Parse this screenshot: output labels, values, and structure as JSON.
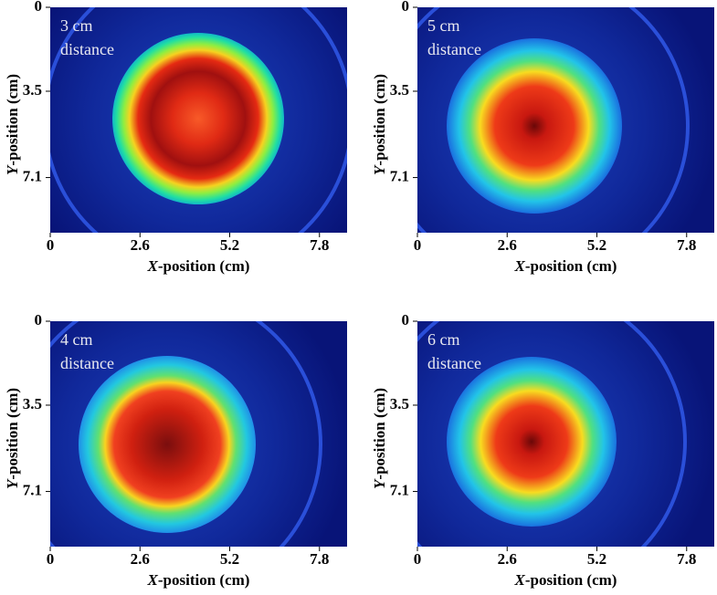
{
  "chart_data": [
    {
      "type": "heatmap",
      "annotation": [
        "3 cm",
        "distance"
      ],
      "xlabel": "X-position (cm)",
      "ylabel": "Y-position (cm)",
      "xlim": [
        0,
        8.6
      ],
      "xticks": [
        0,
        2.6,
        5.2,
        7.8
      ],
      "ylim": [
        9.4,
        0
      ],
      "yticks": [
        0,
        3.5,
        7.1
      ]
    },
    {
      "type": "heatmap",
      "annotation": [
        "5 cm",
        "distance"
      ],
      "xlabel": "X-position (cm)",
      "ylabel": "Y-position (cm)",
      "xlim": [
        0,
        8.6
      ],
      "xticks": [
        0,
        2.6,
        5.2,
        7.8
      ],
      "ylim": [
        9.4,
        0
      ],
      "yticks": [
        0,
        3.5,
        7.1
      ]
    },
    {
      "type": "heatmap",
      "annotation": [
        "4 cm",
        "distance"
      ],
      "xlabel": "X-position (cm)",
      "ylabel": "Y-position (cm)",
      "xlim": [
        0,
        8.6
      ],
      "xticks": [
        0,
        2.6,
        5.2,
        7.8
      ],
      "ylim": [
        9.4,
        0
      ],
      "yticks": [
        0,
        3.5,
        7.1
      ]
    },
    {
      "type": "heatmap",
      "annotation": [
        "6 cm",
        "distance"
      ],
      "xlabel": "X-position (cm)",
      "ylabel": "Y-position (cm)",
      "xlim": [
        0,
        8.6
      ],
      "xticks": [
        0,
        2.6,
        5.2,
        7.8
      ],
      "ylim": [
        9.4,
        0
      ],
      "yticks": [
        0,
        3.5,
        7.1
      ]
    }
  ]
}
